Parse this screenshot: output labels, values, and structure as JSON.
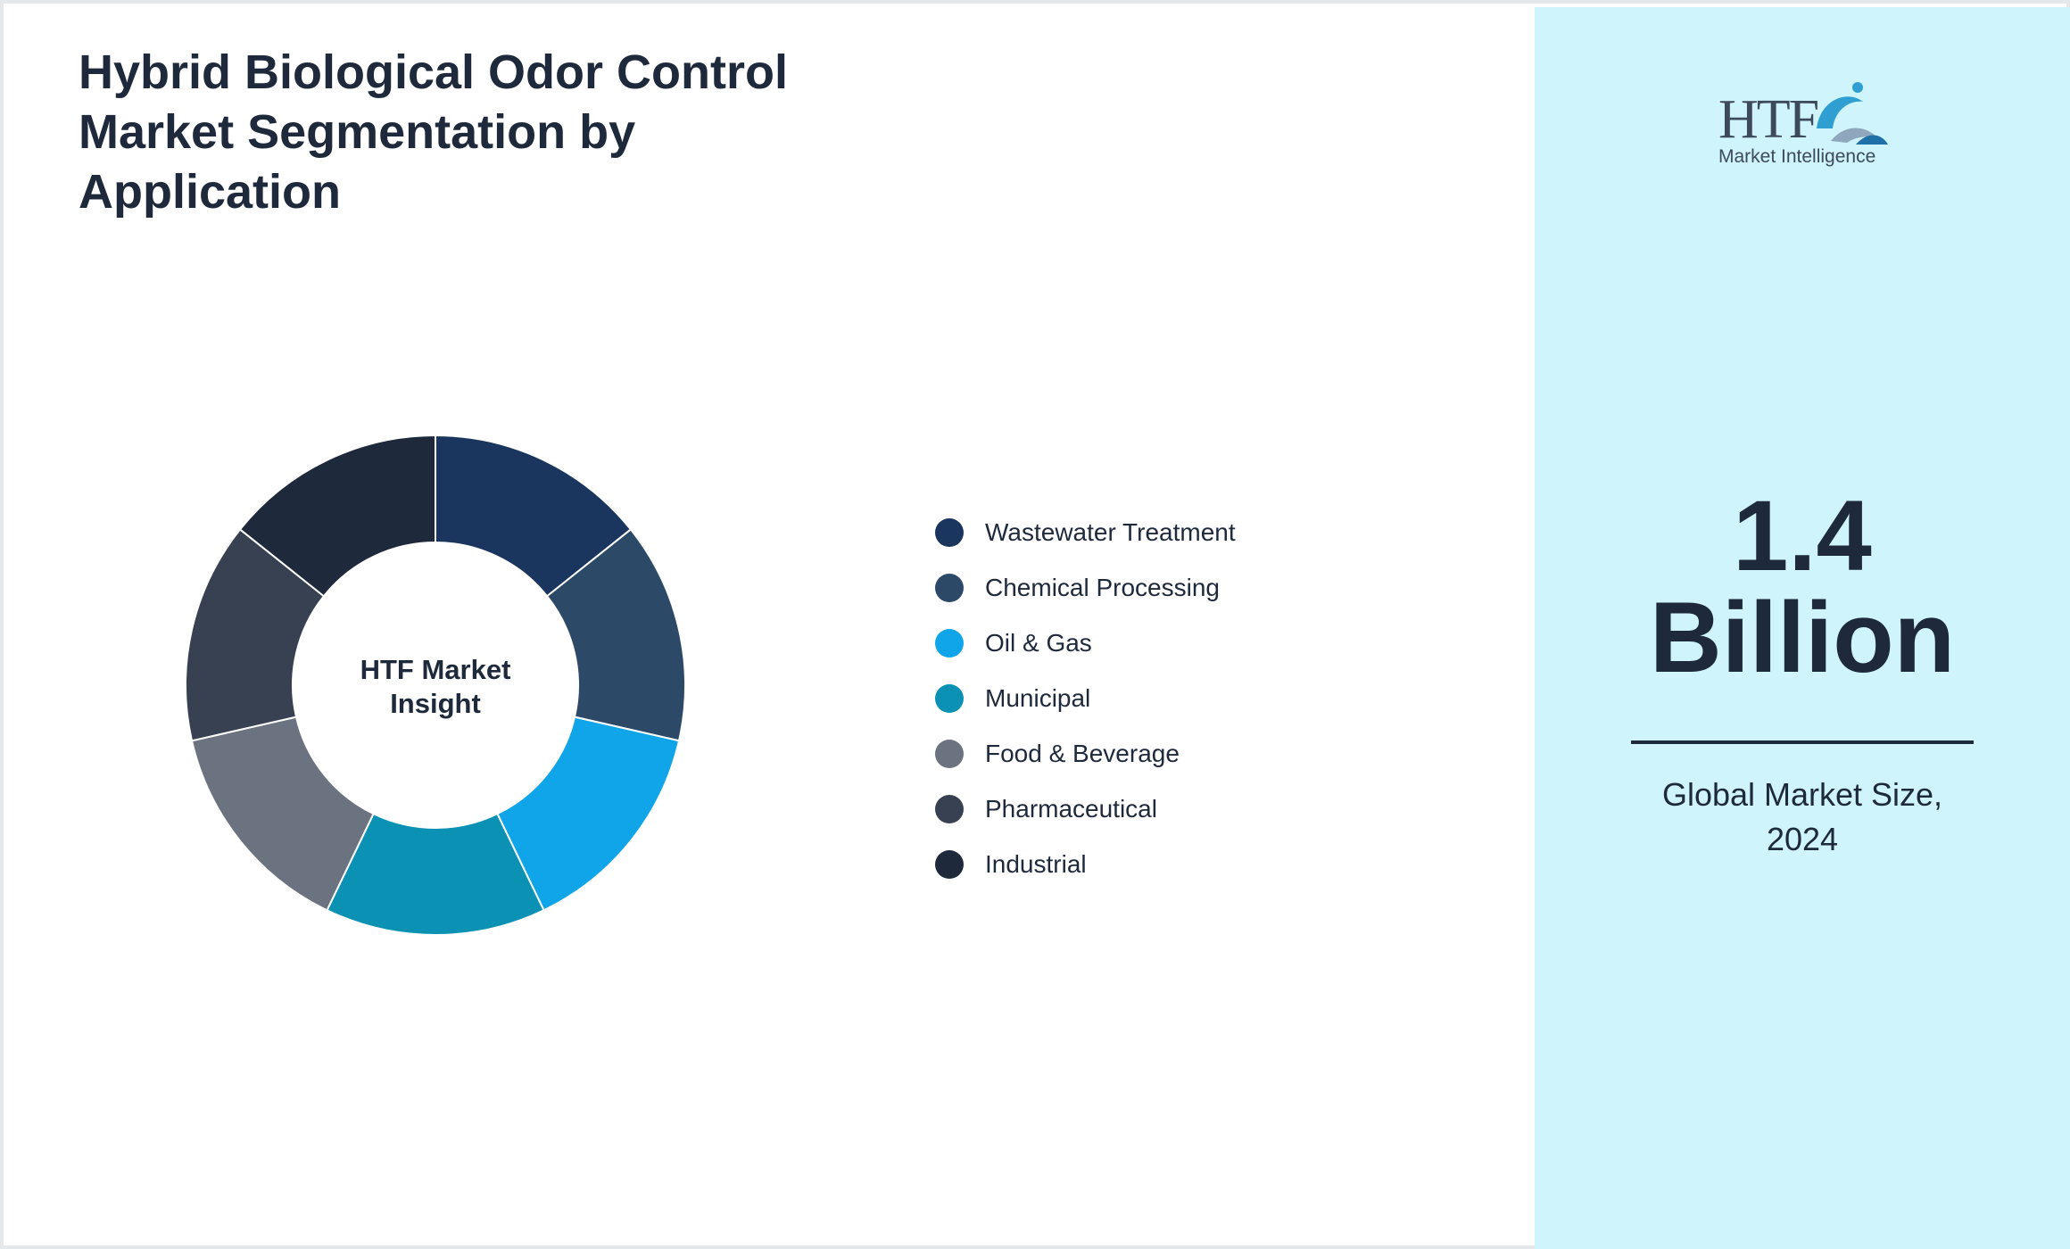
{
  "title": "Hybrid Biological Odor Control Market Segmentation by Application",
  "chart_data": {
    "type": "pie",
    "title": "Hybrid Biological Odor Control Market Segmentation by Application",
    "center_label": [
      "HTF Market",
      "Insight"
    ],
    "categories": [
      "Wastewater Treatment",
      "Chemical Processing",
      "Oil & Gas",
      "Municipal",
      "Food & Beverage",
      "Pharmaceutical",
      "Industrial"
    ],
    "values": [
      14.29,
      14.29,
      14.29,
      14.29,
      14.29,
      14.29,
      14.29
    ],
    "colors": [
      "#1a355e",
      "#2c4a67",
      "#10a5e8",
      "#0a91b4",
      "#6b7280",
      "#374151",
      "#1e293b"
    ],
    "legend_position": "right"
  },
  "sidebar": {
    "logo": {
      "brand": "HTF",
      "tagline": "Market Intelligence",
      "colors": [
        "#3d4a5c",
        "#2e9fd0",
        "#8fa7bd"
      ]
    },
    "value_line1": "1.4",
    "value_line2": "Billion",
    "caption_line1": "Global Market Size,",
    "caption_line2": "2024"
  }
}
